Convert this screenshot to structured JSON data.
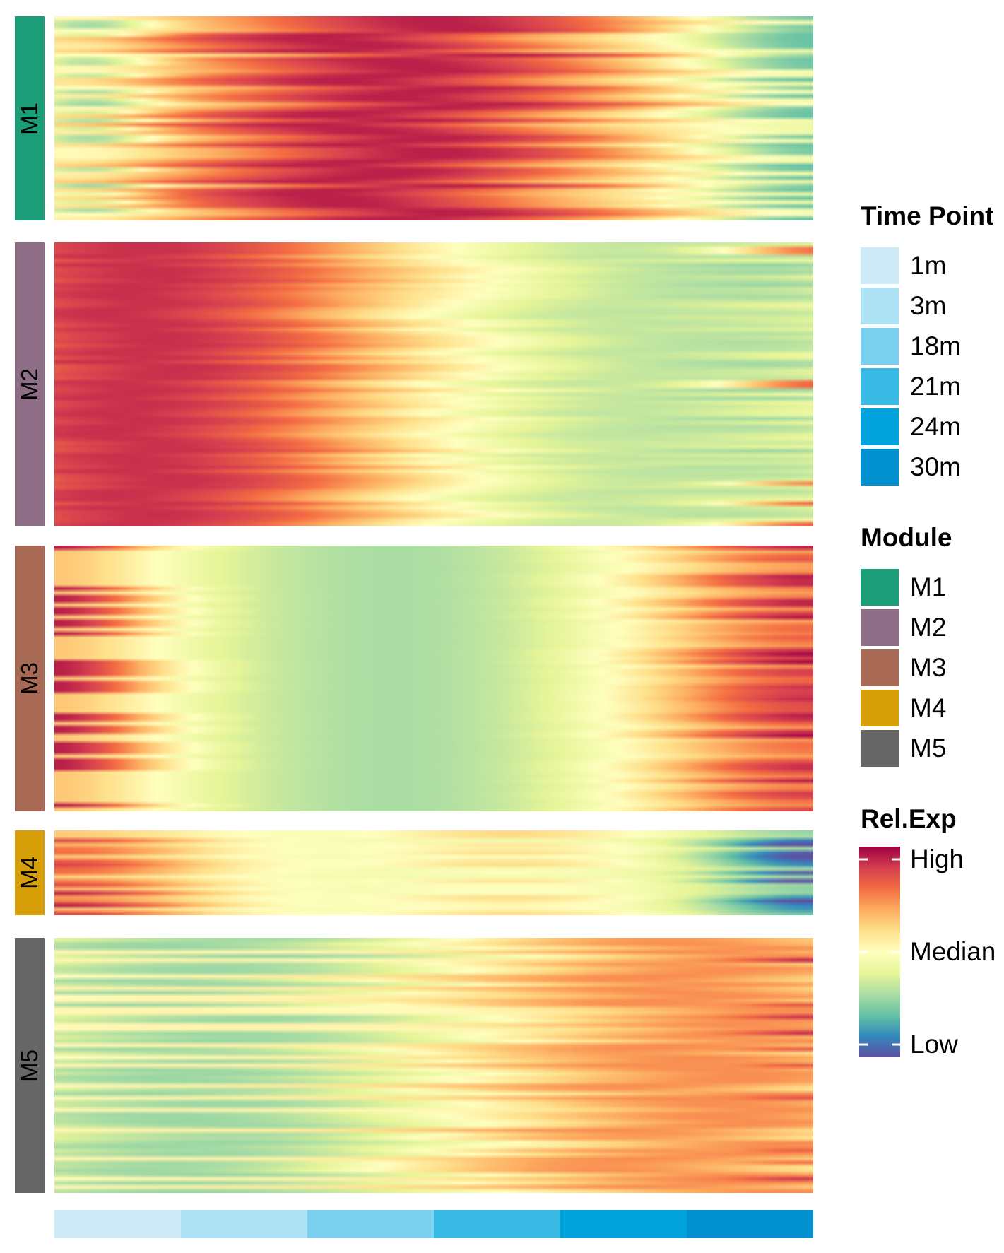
{
  "chart_data": {
    "type": "heatmap",
    "title": "",
    "xlabel": "",
    "ylabel": "",
    "modules": [
      {
        "name": "M1",
        "color": "#1b9e77",
        "rows": 50,
        "pattern": "mid-high"
      },
      {
        "name": "M2",
        "color": "#8d6e86",
        "rows": 70,
        "pattern": "early-high"
      },
      {
        "name": "M3",
        "color": "#a96a55",
        "rows": 65,
        "pattern": "early-and-late-high"
      },
      {
        "name": "M4",
        "color": "#d69f08",
        "rows": 21,
        "pattern": "early-high-late-low"
      },
      {
        "name": "M5",
        "color": "#666666",
        "rows": 63,
        "pattern": "late-high"
      }
    ],
    "time_points": [
      "1m",
      "3m",
      "18m",
      "21m",
      "24m",
      "30m"
    ],
    "time_point_colors": [
      "#cdebf7",
      "#ade2f4",
      "#7bd0ef",
      "#39bbe6",
      "#02a2dd",
      "#0190d0"
    ],
    "color_scale": {
      "labels": [
        "High",
        "Median",
        "Low"
      ],
      "colors": [
        "#9e0142",
        "#d53e4f",
        "#f46d43",
        "#fdae61",
        "#fee08b",
        "#ffffbf",
        "#e6f598",
        "#abdda4",
        "#66c2a5",
        "#3288bd",
        "#5e4fa2"
      ]
    }
  },
  "legends": {
    "time_point": {
      "title": "Time Point"
    },
    "module": {
      "title": "Module"
    },
    "rel_exp": {
      "title": "Rel.Exp"
    }
  }
}
